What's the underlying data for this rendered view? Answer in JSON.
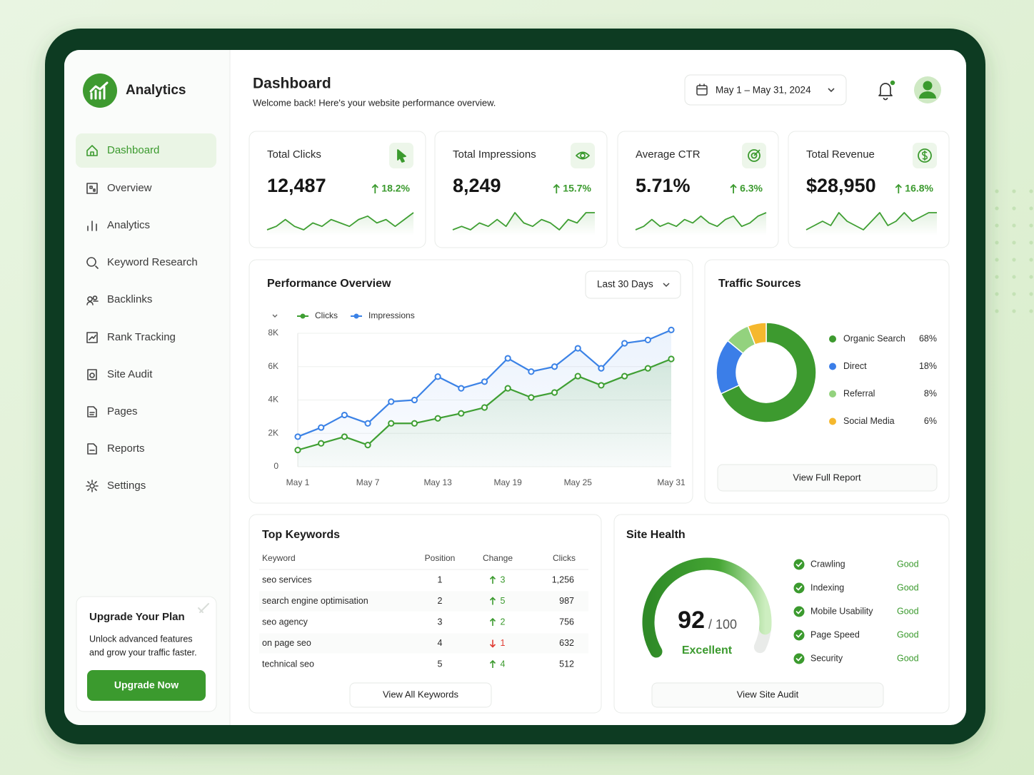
{
  "sidebar": {
    "brand": "Analytics",
    "nav": [
      "Dashboard",
      "Overview",
      "Analytics",
      "Keyword Research",
      "Backlinks",
      "Rank Tracking",
      "Site Audit",
      "Pages",
      "Reports",
      "Settings"
    ],
    "active": 0,
    "upgrade": {
      "title": "Upgrade Your Plan",
      "text": [
        "Unlock advanced features",
        "and grow your traffic faster."
      ],
      "button": "Upgrade Now"
    }
  },
  "header": {
    "title": "Dashboard",
    "subtitle": "Welcome back! Here's your website performance overview.",
    "date_range": "May 1 – May 31, 2024"
  },
  "kpis": [
    {
      "label": "Total Clicks",
      "value": "12,487",
      "change": "18.2%",
      "trend": [
        3,
        4,
        6,
        4,
        3,
        5,
        4,
        6,
        5,
        4,
        6,
        7,
        5,
        6,
        4,
        6,
        8
      ]
    },
    {
      "label": "Total Impressions",
      "value": "8,249",
      "change": "15.7%",
      "trend": [
        3,
        4,
        3,
        5,
        4,
        6,
        4,
        8,
        5,
        4,
        6,
        5,
        3,
        6,
        5,
        8,
        8
      ]
    },
    {
      "label": "Average CTR",
      "value": "5.71%",
      "change": "6.3%",
      "trend": [
        3,
        4,
        6,
        4,
        5,
        4,
        6,
        5,
        7,
        5,
        4,
        6,
        7,
        4,
        5,
        7,
        8
      ]
    },
    {
      "label": "Total Revenue",
      "value": "$28,950",
      "change": "16.8%",
      "trend": [
        3,
        4,
        5,
        4,
        7,
        5,
        4,
        3,
        5,
        7,
        4,
        5,
        7,
        5,
        6,
        7,
        7
      ]
    }
  ],
  "performance": {
    "title": "Performance Overview",
    "period": "Last 30 Days",
    "chart": {
      "type": "line",
      "categories": [
        "May 1",
        null,
        null,
        "May 7",
        null,
        null,
        "May 13",
        null,
        null,
        "May 19",
        null,
        null,
        "May 25",
        null,
        null,
        null,
        "May 31"
      ],
      "series": [
        {
          "name": "Clicks",
          "color": "#3f9f33",
          "values": [
            1000,
            1400,
            1800,
            1300,
            2600,
            2600,
            2900,
            3200,
            3550,
            4700,
            4150,
            4450,
            5430,
            4880,
            5430,
            5900,
            6460
          ]
        },
        {
          "name": "Impressions",
          "color": "#3b82e6",
          "values": [
            1800,
            2350,
            3100,
            2600,
            3900,
            4000,
            5400,
            4700,
            5100,
            6500,
            5700,
            6000,
            7100,
            5900,
            7400,
            7600,
            8200
          ]
        }
      ],
      "ylim": [
        0,
        8000
      ],
      "yticks": [
        0,
        {
          "value": 2000,
          "label": "2K"
        },
        {
          "value": 4000,
          "label": "4K"
        },
        {
          "value": 6000,
          "label": "6K"
        },
        {
          "value": 8000,
          "label": "8K"
        }
      ],
      "grid": true
    }
  },
  "traffic": {
    "title": "Traffic Sources",
    "chart": {
      "type": "pie",
      "categories": [
        "Organic Search",
        "Direct",
        "Referral",
        "Social Media"
      ],
      "values": [
        68,
        18,
        8,
        6
      ],
      "value_labels": [
        "68%",
        "18%",
        "8%",
        "6%"
      ],
      "colors": [
        "#3d9a2f",
        "#3b7ee8",
        "#93d27e",
        "#f5b82e"
      ]
    },
    "button": "View Full Report"
  },
  "keywords": {
    "title": "Top Keywords",
    "columns": [
      "Keyword",
      "Position",
      "Change",
      "Clicks"
    ],
    "rows": [
      [
        "seo services",
        "1",
        "3",
        "1,256"
      ],
      [
        "search engine optimisation",
        "2",
        "5",
        "987"
      ],
      [
        "seo agency",
        "3",
        "2",
        "756"
      ],
      [
        "on page seo",
        "4",
        "1",
        "632"
      ],
      [
        "technical seo",
        "5",
        "4",
        "512"
      ]
    ],
    "change_direction": [
      "up",
      "up",
      "up",
      "down",
      "up"
    ],
    "button": "View All Keywords"
  },
  "site_health": {
    "title": "Site Health",
    "score": 92,
    "max": {
      "value": 100,
      "label": "/ 100"
    },
    "rating": "Excellent",
    "checks": [
      {
        "name": "Crawling",
        "status": "Good"
      },
      {
        "name": "Indexing",
        "status": "Good"
      },
      {
        "name": "Mobile Usability",
        "status": "Good"
      },
      {
        "name": "Page Speed",
        "status": "Good"
      },
      {
        "name": "Security",
        "status": "Good"
      }
    ],
    "button": "View Site Audit"
  }
}
